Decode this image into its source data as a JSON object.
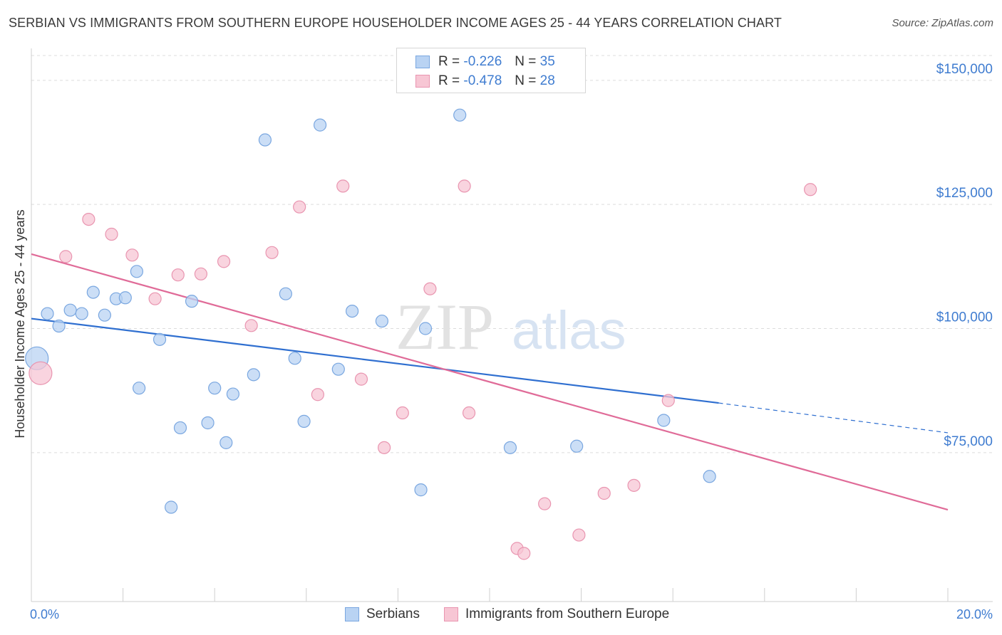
{
  "title": "SERBIAN VS IMMIGRANTS FROM SOUTHERN EUROPE HOUSEHOLDER INCOME AGES 25 - 44 YEARS CORRELATION CHART",
  "source": "Source: ZipAtlas.com",
  "watermark": {
    "zip": "ZIP",
    "atlas": "atlas"
  },
  "legend": {
    "r_label": "R =",
    "n_label": "N =",
    "serbians": {
      "r": "-0.226",
      "n": "35"
    },
    "immigrants": {
      "r": "-0.478",
      "n": "28"
    }
  },
  "colors": {
    "serbians_fill": "#b9d3f3",
    "serbians_stroke": "#7aa7e0",
    "serbians_line": "#2f6fd0",
    "immigrants_fill": "#f7c6d4",
    "immigrants_stroke": "#e995b0",
    "immigrants_line": "#e06b98",
    "axis_text": "#3f7cd0"
  },
  "chart_data": {
    "type": "scatter",
    "title": "SERBIAN VS IMMIGRANTS FROM SOUTHERN EUROPE HOUSEHOLDER INCOME AGES 25 - 44 YEARS CORRELATION CHART",
    "xlabel": "",
    "ylabel": "Householder Income Ages 25 - 44 years",
    "xlim": [
      0,
      20
    ],
    "ylim": [
      45000,
      155000
    ],
    "x_tick_labels": [
      "0.0%",
      "20.0%"
    ],
    "y_ticks": [
      75000,
      100000,
      125000,
      150000
    ],
    "y_tick_labels": [
      "$75,000",
      "$100,000",
      "$125,000",
      "$150,000"
    ],
    "grid": true,
    "legend_labels": [
      "Serbians",
      "Immigrants from Southern Europe"
    ],
    "series": [
      {
        "name": "Serbians",
        "trend": {
          "x": [
            0.0,
            15.0
          ],
          "y": [
            102000,
            85000
          ],
          "dashed_to": {
            "x": 20.0,
            "y": 79000
          }
        },
        "points": [
          {
            "x": 0.12,
            "y": 94000,
            "big": true
          },
          {
            "x": 0.35,
            "y": 103000
          },
          {
            "x": 0.6,
            "y": 100500
          },
          {
            "x": 0.85,
            "y": 103700
          },
          {
            "x": 1.1,
            "y": 103000
          },
          {
            "x": 1.35,
            "y": 107300
          },
          {
            "x": 1.6,
            "y": 102700
          },
          {
            "x": 1.85,
            "y": 106000
          },
          {
            "x": 2.05,
            "y": 106200
          },
          {
            "x": 2.3,
            "y": 111500
          },
          {
            "x": 2.35,
            "y": 88000
          },
          {
            "x": 2.8,
            "y": 97800
          },
          {
            "x": 3.05,
            "y": 64000
          },
          {
            "x": 3.25,
            "y": 80000
          },
          {
            "x": 3.5,
            "y": 105500
          },
          {
            "x": 3.85,
            "y": 81000
          },
          {
            "x": 4.0,
            "y": 88000
          },
          {
            "x": 4.25,
            "y": 77000
          },
          {
            "x": 4.4,
            "y": 86800
          },
          {
            "x": 4.85,
            "y": 90700
          },
          {
            "x": 5.1,
            "y": 138000
          },
          {
            "x": 5.55,
            "y": 107000
          },
          {
            "x": 5.75,
            "y": 94000
          },
          {
            "x": 5.95,
            "y": 81300
          },
          {
            "x": 6.3,
            "y": 141000
          },
          {
            "x": 6.7,
            "y": 91800
          },
          {
            "x": 7.0,
            "y": 103500
          },
          {
            "x": 7.65,
            "y": 101500
          },
          {
            "x": 8.5,
            "y": 67500
          },
          {
            "x": 8.6,
            "y": 100000
          },
          {
            "x": 9.35,
            "y": 143000
          },
          {
            "x": 10.45,
            "y": 76000
          },
          {
            "x": 11.9,
            "y": 76300
          },
          {
            "x": 13.8,
            "y": 81500
          },
          {
            "x": 14.8,
            "y": 70200
          }
        ]
      },
      {
        "name": "Immigrants from Southern Europe",
        "trend": {
          "x": [
            0.0,
            20.0
          ],
          "y": [
            115000,
            63500
          ]
        },
        "points": [
          {
            "x": 0.2,
            "y": 91000,
            "big": true
          },
          {
            "x": 0.75,
            "y": 114500
          },
          {
            "x": 1.25,
            "y": 122000
          },
          {
            "x": 1.75,
            "y": 119000
          },
          {
            "x": 2.2,
            "y": 114800
          },
          {
            "x": 2.7,
            "y": 106000
          },
          {
            "x": 3.2,
            "y": 110800
          },
          {
            "x": 3.7,
            "y": 111000
          },
          {
            "x": 4.2,
            "y": 113500
          },
          {
            "x": 4.8,
            "y": 100600
          },
          {
            "x": 5.25,
            "y": 115300
          },
          {
            "x": 5.85,
            "y": 124500
          },
          {
            "x": 6.25,
            "y": 86700
          },
          {
            "x": 6.8,
            "y": 128700
          },
          {
            "x": 7.2,
            "y": 89800
          },
          {
            "x": 7.7,
            "y": 76000
          },
          {
            "x": 8.1,
            "y": 83000
          },
          {
            "x": 8.7,
            "y": 108000
          },
          {
            "x": 9.45,
            "y": 128700
          },
          {
            "x": 9.55,
            "y": 83000
          },
          {
            "x": 10.6,
            "y": 55700
          },
          {
            "x": 10.75,
            "y": 54700
          },
          {
            "x": 11.2,
            "y": 64700
          },
          {
            "x": 11.95,
            "y": 58400
          },
          {
            "x": 12.5,
            "y": 66800
          },
          {
            "x": 13.15,
            "y": 68400
          },
          {
            "x": 13.9,
            "y": 85500
          },
          {
            "x": 17.0,
            "y": 128000
          }
        ]
      }
    ]
  }
}
